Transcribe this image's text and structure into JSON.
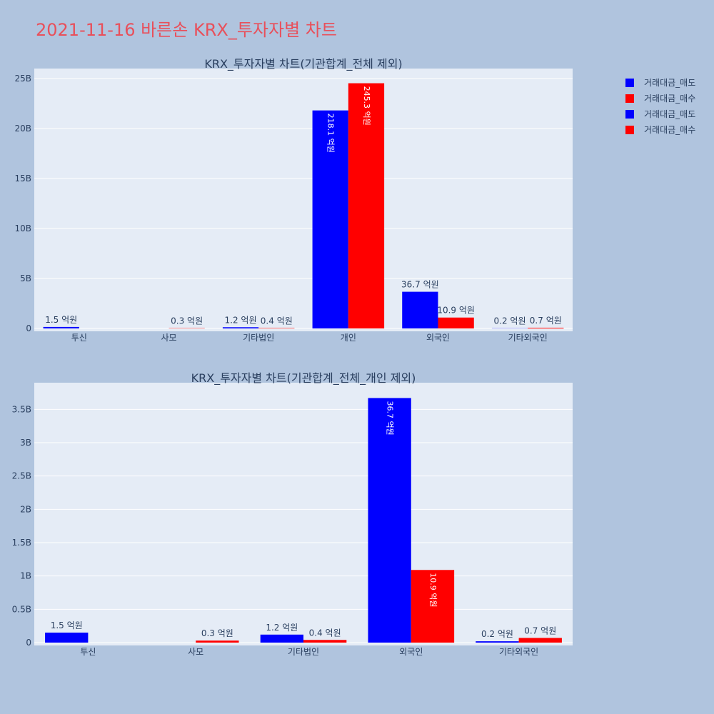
{
  "page": {
    "title": "2021-11-16 바른손 KRX_투자자별 차트",
    "title_color": "#e8505b",
    "background": "#b0c4de",
    "plot_background": "#e5ecf6"
  },
  "legend": {
    "placement": "top-right",
    "items": [
      {
        "label": "거래대금_매도",
        "color": "#0000ff"
      },
      {
        "label": "거래대금_매수",
        "color": "#ff0000"
      },
      {
        "label": "거래대금_매도",
        "color": "#0000ff"
      },
      {
        "label": "거래대금_매수",
        "color": "#ff0000"
      }
    ]
  },
  "chart_data": [
    {
      "type": "bar",
      "title": "KRX_투자자별 차트(기관합계_전체 제외)",
      "categories": [
        "투신",
        "사모",
        "기타법인",
        "개인",
        "외국인",
        "기타외국인"
      ],
      "ylim": [
        0,
        26000000000
      ],
      "yticks": [
        0,
        5000000000,
        10000000000,
        15000000000,
        20000000000,
        25000000000
      ],
      "ytick_labels": [
        "0",
        "5B",
        "10B",
        "15B",
        "20B",
        "25B"
      ],
      "grid": true,
      "series": [
        {
          "name": "거래대금_매도",
          "color": "#0000ff",
          "values": [
            150000000,
            0,
            120000000,
            21810000000,
            3670000000,
            20000000
          ],
          "labels": [
            "1.5 억원",
            "",
            "1.2 억원",
            "218.1 억원",
            "36.7 억원",
            "0.2 억원"
          ]
        },
        {
          "name": "거래대금_매수",
          "color": "#ff0000",
          "values": [
            0,
            30000000,
            40000000,
            24530000000,
            1090000000,
            70000000
          ],
          "labels": [
            "",
            "0.3 억원",
            "0.4 억원",
            "245.3 억원",
            "10.9 억원",
            "0.7 억원"
          ]
        }
      ]
    },
    {
      "type": "bar",
      "title": "KRX_투자자별 차트(기관합계_전체_개인 제외)",
      "categories": [
        "투신",
        "사모",
        "기타법인",
        "외국인",
        "기타외국인"
      ],
      "ylim": [
        0,
        3900000000
      ],
      "yticks": [
        0,
        500000000,
        1000000000,
        1500000000,
        2000000000,
        2500000000,
        3000000000,
        3500000000
      ],
      "ytick_labels": [
        "0",
        "0.5B",
        "1B",
        "1.5B",
        "2B",
        "2.5B",
        "3B",
        "3.5B"
      ],
      "grid": true,
      "series": [
        {
          "name": "거래대금_매도",
          "color": "#0000ff",
          "values": [
            150000000,
            0,
            120000000,
            3670000000,
            20000000
          ],
          "labels": [
            "1.5 억원",
            "",
            "1.2 억원",
            "36.7 억원",
            "0.2 억원"
          ]
        },
        {
          "name": "거래대금_매수",
          "color": "#ff0000",
          "values": [
            0,
            30000000,
            40000000,
            1090000000,
            70000000
          ],
          "labels": [
            "",
            "0.3 억원",
            "0.4 억원",
            "10.9 억원",
            "0.7 억원"
          ]
        }
      ]
    }
  ]
}
